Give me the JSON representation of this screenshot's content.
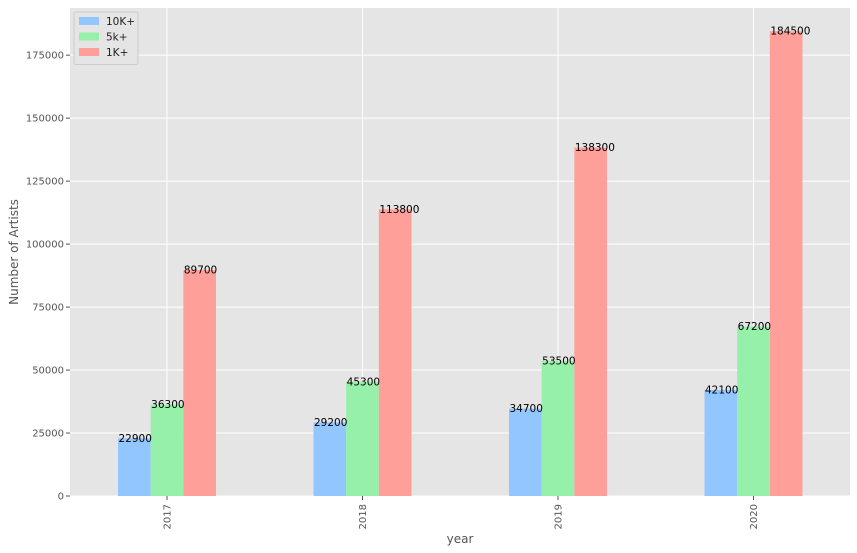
{
  "chart_data": {
    "type": "bar",
    "categories": [
      "2017",
      "2018",
      "2019",
      "2020"
    ],
    "series": [
      {
        "name": "10K+",
        "color": "#92c6ff",
        "values": [
          22900,
          29200,
          34700,
          42100
        ]
      },
      {
        "name": "5k+",
        "color": "#97f0aa",
        "values": [
          36300,
          45300,
          53500,
          67200
        ]
      },
      {
        "name": "1K+",
        "color": "#ff9f9a",
        "values": [
          89700,
          113800,
          138300,
          184500
        ]
      }
    ],
    "xlabel": "year",
    "ylabel": "Number of Artists",
    "ylim": [
      0,
      193725
    ],
    "yticks": [
      0,
      25000,
      50000,
      75000,
      100000,
      125000,
      150000,
      175000
    ],
    "grid": true,
    "legend_position": "top-left",
    "data_labels": true,
    "x_tick_rotation": "vertical"
  }
}
